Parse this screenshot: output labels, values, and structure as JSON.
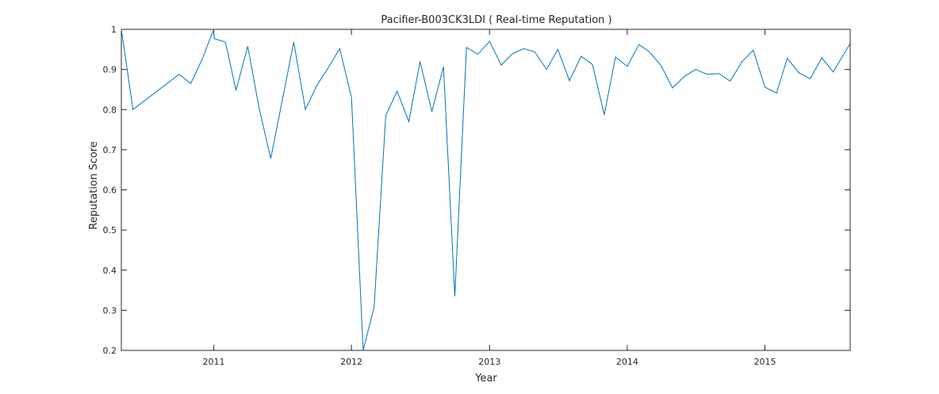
{
  "chart_data": {
    "type": "line",
    "title": "Pacifier-B003CK3LDI ( Real-time Reputation )",
    "xlabel": "Year",
    "ylabel": "Reputation Score",
    "xlim": [
      "2010-05-01",
      "2015-08-15"
    ],
    "ylim": [
      0.2,
      1.0
    ],
    "x_ticks": [
      "2011",
      "2012",
      "2013",
      "2014",
      "2015"
    ],
    "x_tick_dates": [
      "2011-01-01",
      "2012-01-01",
      "2013-01-01",
      "2014-01-01",
      "2015-01-01"
    ],
    "y_ticks": [
      "0.2",
      "0.3",
      "0.4",
      "0.5",
      "0.6",
      "0.7",
      "0.8",
      "0.9",
      "1"
    ],
    "grid": false,
    "line_color": "#0072bd",
    "series": [
      {
        "x": [
          "2010-05-01",
          "2010-06-01",
          "2010-10-01",
          "2010-11-01",
          "2010-12-01",
          "2011-01-01",
          "2011-01-02",
          "2011-02-01",
          "2011-03-01",
          "2011-04-01",
          "2011-05-01",
          "2011-06-01",
          "2011-07-01",
          "2011-08-01",
          "2011-09-01",
          "2011-10-01",
          "2011-11-01",
          "2011-12-01",
          "2012-01-01",
          "2012-02-01",
          "2012-03-01",
          "2012-04-01",
          "2012-05-01",
          "2012-06-01",
          "2012-07-01",
          "2012-08-01",
          "2012-09-01",
          "2012-10-01",
          "2012-11-01",
          "2012-12-01",
          "2013-01-01",
          "2013-02-01",
          "2013-03-01",
          "2013-04-01",
          "2013-05-01",
          "2013-06-01",
          "2013-07-01",
          "2013-08-01",
          "2013-09-01",
          "2013-10-01",
          "2013-11-01",
          "2013-12-01",
          "2014-01-01",
          "2014-02-01",
          "2014-03-01",
          "2014-04-01",
          "2014-05-01",
          "2014-06-01",
          "2014-07-01",
          "2014-08-01",
          "2014-09-01",
          "2014-10-01",
          "2014-11-01",
          "2014-12-01",
          "2015-01-01",
          "2015-02-01",
          "2015-03-01",
          "2015-04-01",
          "2015-05-01",
          "2015-06-01",
          "2015-07-01",
          "2015-08-15"
        ],
        "y": [
          1.0,
          0.8,
          0.888,
          0.865,
          0.925,
          1.0,
          0.977,
          0.968,
          0.848,
          0.958,
          0.805,
          0.678,
          0.82,
          0.968,
          0.8,
          0.86,
          0.905,
          0.952,
          0.83,
          0.2,
          0.308,
          0.785,
          0.846,
          0.77,
          0.92,
          0.795,
          0.907,
          0.335,
          0.955,
          0.938,
          0.97,
          0.911,
          0.938,
          0.952,
          0.944,
          0.9,
          0.95,
          0.872,
          0.933,
          0.912,
          0.787,
          0.931,
          0.908,
          0.962,
          0.944,
          0.909,
          0.854,
          0.882,
          0.9,
          0.888,
          0.89,
          0.871,
          0.919,
          0.948,
          0.856,
          0.841,
          0.928,
          0.892,
          0.877,
          0.929,
          0.894,
          0.965
        ]
      }
    ]
  }
}
